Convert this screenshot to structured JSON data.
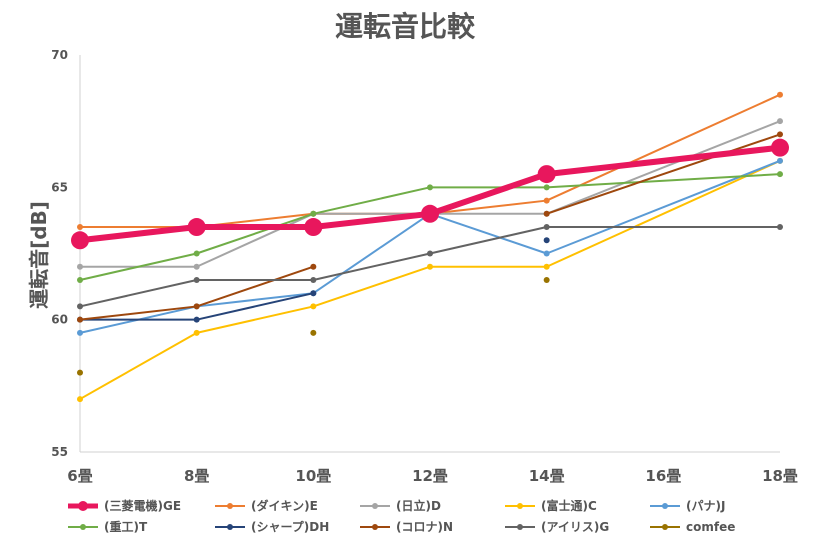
{
  "chart_data": {
    "type": "line",
    "title": "運転音比較",
    "xlabel": "",
    "ylabel": "運転音[dB]",
    "categories": [
      "6畳",
      "8畳",
      "10畳",
      "12畳",
      "14畳",
      "16畳",
      "18畳"
    ],
    "ylim": [
      55,
      70
    ],
    "yticks": [
      55,
      60,
      65,
      70
    ],
    "grid": false,
    "legend_position": "bottom",
    "series": [
      {
        "name": "(三菱電機)GE",
        "color": "#E8175D",
        "emphasis": true,
        "values": [
          63,
          63.5,
          63.5,
          64,
          65.5,
          null,
          66.5
        ]
      },
      {
        "name": "(ダイキン)E",
        "color": "#ED7D31",
        "values": [
          63.5,
          63.5,
          64,
          64,
          64.5,
          null,
          68.5
        ]
      },
      {
        "name": "(日立)D",
        "color": "#A5A5A5",
        "values": [
          62,
          62,
          64,
          64,
          64,
          null,
          67.5
        ]
      },
      {
        "name": "(富士通)C",
        "color": "#FFC000",
        "values": [
          57,
          59.5,
          60.5,
          62,
          62,
          null,
          66
        ]
      },
      {
        "name": "(パナ)J",
        "color": "#5B9BD5",
        "values": [
          59.5,
          60.5,
          61,
          64,
          62.5,
          null,
          66
        ]
      },
      {
        "name": "(重工)T",
        "color": "#70AD47",
        "values": [
          61.5,
          62.5,
          64,
          65,
          65,
          null,
          65.5
        ]
      },
      {
        "name": "(シャープ)DH",
        "color": "#264478",
        "values": [
          60,
          60,
          61,
          null,
          63,
          null,
          null
        ]
      },
      {
        "name": "(コロナ)N",
        "color": "#9E480E",
        "values": [
          60,
          60.5,
          62,
          null,
          64,
          null,
          67
        ]
      },
      {
        "name": "(アイリス)G",
        "color": "#636363",
        "values": [
          60.5,
          61.5,
          61.5,
          62.5,
          63.5,
          null,
          63.5
        ]
      },
      {
        "name": "comfee",
        "color": "#997300",
        "values": [
          58,
          null,
          59.5,
          null,
          61.5,
          null,
          null
        ]
      }
    ]
  }
}
